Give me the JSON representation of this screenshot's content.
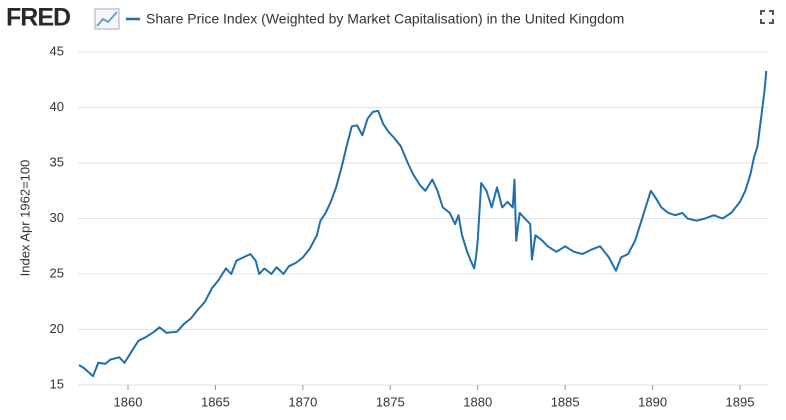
{
  "chart_data": {
    "type": "line",
    "logo": "FRED",
    "y_label": "Index Apr 1962=100",
    "x": [
      1857.2,
      1857.5,
      1858.0,
      1858.3,
      1858.7,
      1859.0,
      1859.5,
      1859.8,
      1860.2,
      1860.6,
      1861.0,
      1861.5,
      1861.8,
      1862.2,
      1862.8,
      1863.2,
      1863.6,
      1864.0,
      1864.4,
      1864.8,
      1865.2,
      1865.6,
      1865.9,
      1866.2,
      1866.6,
      1867.0,
      1867.3,
      1867.5,
      1867.8,
      1868.2,
      1868.5,
      1868.9,
      1869.2,
      1869.6,
      1870.0,
      1870.4,
      1870.8,
      1871.0,
      1871.3,
      1871.6,
      1871.9,
      1872.2,
      1872.5,
      1872.8,
      1873.1,
      1873.4,
      1873.7,
      1874.0,
      1874.3,
      1874.6,
      1874.9,
      1875.2,
      1875.6,
      1876.0,
      1876.3,
      1876.7,
      1877.0,
      1877.4,
      1877.7,
      1878.0,
      1878.4,
      1878.7,
      1878.9,
      1879.1,
      1879.4,
      1879.6,
      1879.8,
      1879.9,
      1880.0,
      1880.2,
      1880.5,
      1880.8,
      1881.1,
      1881.4,
      1881.7,
      1882.0,
      1882.1,
      1882.2,
      1882.4,
      1882.7,
      1883.0,
      1883.1,
      1883.3,
      1883.7,
      1884.0,
      1884.5,
      1885.0,
      1885.5,
      1886.0,
      1886.5,
      1887.0,
      1887.5,
      1887.9,
      1888.2,
      1888.6,
      1889.0,
      1889.3,
      1889.6,
      1889.9,
      1890.2,
      1890.5,
      1890.9,
      1891.3,
      1891.7,
      1892.0,
      1892.5,
      1893.0,
      1893.5,
      1894.0,
      1894.5,
      1895.0,
      1895.3,
      1895.6,
      1895.8,
      1896.0,
      1896.2,
      1896.4,
      1896.5
    ],
    "series": [
      {
        "name": "Share Price Index (Weighted by Market Capitalisation) in the United Kingdom",
        "color": "#1f6fad",
        "values": [
          16.8,
          16.5,
          15.8,
          17.0,
          16.9,
          17.3,
          17.5,
          17.0,
          18.0,
          19.0,
          19.3,
          19.8,
          20.2,
          19.7,
          19.8,
          20.5,
          21.0,
          21.8,
          22.5,
          23.7,
          24.5,
          25.5,
          25.0,
          26.2,
          26.5,
          26.8,
          26.2,
          25.0,
          25.5,
          25.0,
          25.6,
          25.0,
          25.7,
          26.0,
          26.5,
          27.3,
          28.5,
          29.8,
          30.5,
          31.5,
          32.8,
          34.5,
          36.5,
          38.3,
          38.4,
          37.5,
          39.0,
          39.6,
          39.7,
          38.5,
          37.8,
          37.3,
          36.5,
          35.0,
          34.0,
          33.0,
          32.5,
          33.5,
          32.5,
          31.0,
          30.5,
          29.5,
          30.3,
          28.5,
          27.0,
          26.2,
          25.5,
          26.5,
          28.0,
          33.2,
          32.5,
          31.0,
          32.8,
          31.0,
          31.5,
          31.0,
          33.5,
          28.0,
          30.5,
          30.0,
          29.5,
          26.3,
          28.5,
          28.0,
          27.5,
          27.0,
          27.5,
          27.0,
          26.8,
          27.2,
          27.5,
          26.5,
          25.3,
          26.5,
          26.8,
          28.0,
          29.5,
          31.0,
          32.5,
          31.8,
          31.0,
          30.5,
          30.3,
          30.5,
          30.0,
          29.8,
          30.0,
          30.3,
          30.0,
          30.5,
          31.5,
          32.5,
          34.0,
          35.5,
          36.5,
          39.0,
          41.5,
          43.3
        ]
      }
    ],
    "xlim": [
      1857.14,
      1896.6
    ],
    "xticks": [
      1860,
      1865,
      1870,
      1875,
      1880,
      1885,
      1890,
      1895
    ],
    "ylim": [
      15,
      45
    ],
    "yticks": [
      15,
      20,
      25,
      30,
      35,
      40,
      45
    ],
    "grid": true
  }
}
